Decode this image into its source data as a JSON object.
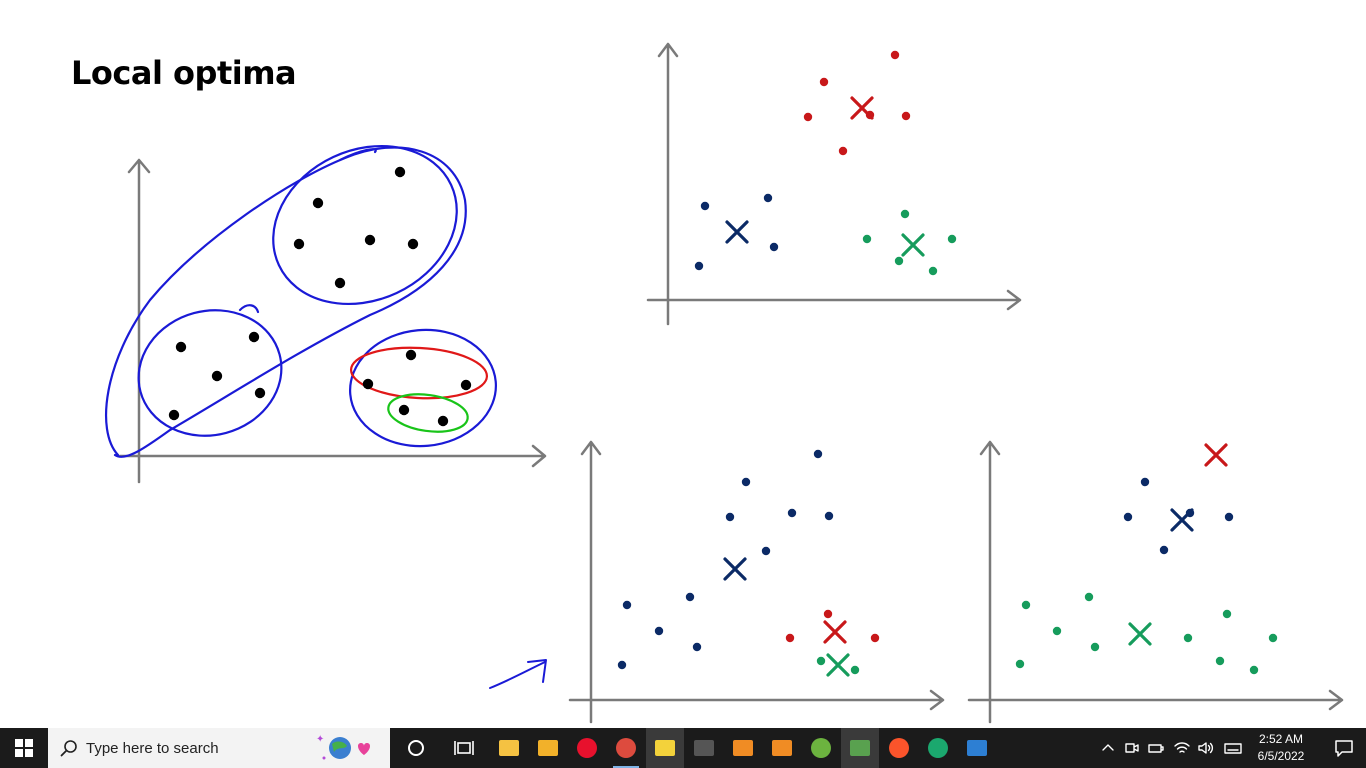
{
  "slide": {
    "title": "Local optima",
    "colors": {
      "axis": "#7a7a7a",
      "ink_blue": "#1a1ad6",
      "ink_red": "#e01818",
      "ink_green": "#19c419",
      "cluster_red": "#c8181a",
      "cluster_navy": "#0b2a66",
      "cluster_green": "#169c5c",
      "point_black": "#000000"
    },
    "plots": [
      {
        "id": "left-handdrawn",
        "points": [
          [
            400,
            172
          ],
          [
            318,
            203
          ],
          [
            299,
            244
          ],
          [
            370,
            240
          ],
          [
            413,
            244
          ],
          [
            340,
            283
          ],
          [
            181,
            347
          ],
          [
            254,
            337
          ],
          [
            217,
            376
          ],
          [
            260,
            393
          ],
          [
            174,
            415
          ],
          [
            411,
            355
          ],
          [
            368,
            384
          ],
          [
            466,
            385
          ],
          [
            404,
            410
          ],
          [
            443,
            421
          ]
        ]
      },
      {
        "id": "top-right",
        "clusters": [
          {
            "color": "cluster_red",
            "centroid": [
              862,
              108
            ],
            "points": [
              [
                895,
                55
              ],
              [
                824,
                82
              ],
              [
                808,
                117
              ],
              [
                906,
                116
              ],
              [
                843,
                151
              ],
              [
                870,
                115
              ]
            ]
          },
          {
            "color": "cluster_navy",
            "centroid": [
              737,
              232
            ],
            "points": [
              [
                705,
                206
              ],
              [
                768,
                198
              ],
              [
                774,
                247
              ],
              [
                699,
                266
              ]
            ]
          },
          {
            "color": "cluster_green",
            "centroid": [
              913,
              245
            ],
            "points": [
              [
                905,
                214
              ],
              [
                867,
                239
              ],
              [
                952,
                239
              ],
              [
                899,
                261
              ],
              [
                933,
                271
              ]
            ]
          }
        ]
      },
      {
        "id": "bottom-middle",
        "clusters": [
          {
            "color": "cluster_navy",
            "centroid": [
              735,
              569
            ],
            "points": [
              [
                818,
                454
              ],
              [
                746,
                482
              ],
              [
                730,
                517
              ],
              [
                792,
                513
              ],
              [
                829,
                516
              ],
              [
                766,
                551
              ],
              [
                627,
                605
              ],
              [
                690,
                597
              ],
              [
                659,
                631
              ],
              [
                697,
                647
              ],
              [
                622,
                665
              ]
            ]
          },
          {
            "color": "cluster_red",
            "centroid": [
              835,
              632
            ],
            "points": [
              [
                828,
                614
              ],
              [
                790,
                638
              ],
              [
                875,
                638
              ]
            ]
          },
          {
            "color": "cluster_green",
            "centroid": [
              838,
              665
            ],
            "points": [
              [
                821,
                661
              ],
              [
                855,
                670
              ]
            ]
          }
        ]
      },
      {
        "id": "bottom-right",
        "clusters": [
          {
            "color": "cluster_red",
            "centroid": [
              1216,
              455
            ],
            "points": []
          },
          {
            "color": "cluster_navy",
            "centroid": [
              1182,
              520
            ],
            "points": [
              [
                1145,
                482
              ],
              [
                1128,
                517
              ],
              [
                1190,
                513
              ],
              [
                1229,
                517
              ],
              [
                1164,
                550
              ]
            ]
          },
          {
            "color": "cluster_green",
            "centroid": [
              1140,
              634
            ],
            "points": [
              [
                1026,
                605
              ],
              [
                1089,
                597
              ],
              [
                1057,
                631
              ],
              [
                1095,
                647
              ],
              [
                1020,
                664
              ],
              [
                1188,
                638
              ],
              [
                1227,
                614
              ],
              [
                1273,
                638
              ],
              [
                1220,
                661
              ],
              [
                1254,
                670
              ]
            ]
          }
        ]
      }
    ]
  },
  "taskbar": {
    "search_placeholder": "Type here to search",
    "icons": {
      "start": "windows-logo-icon",
      "search": "magnifier-icon",
      "cortana": "cortana-circle-icon",
      "task_view": "task-view-icon"
    },
    "apps": [
      {
        "name": "file-explorer-icon",
        "color": "#f5c242"
      },
      {
        "name": "file-folder-icon",
        "color": "#f2b12a"
      },
      {
        "name": "opera-browser-icon",
        "color": "#e8112d"
      },
      {
        "name": "chrome-browser-icon",
        "color": "#dd4b3e"
      },
      {
        "name": "sticky-app-icon",
        "color": "#f3d23b"
      },
      {
        "name": "terminal-icon",
        "color": "#555555"
      },
      {
        "name": "blender-icon",
        "color": "#f08c24"
      },
      {
        "name": "blender-icon-2",
        "color": "#f08c24"
      },
      {
        "name": "utorrent-icon",
        "color": "#6cb33f"
      },
      {
        "name": "download-manager-icon",
        "color": "#59a14f"
      },
      {
        "name": "brave-browser-icon",
        "color": "#fb542b"
      },
      {
        "name": "upwork-icon",
        "color": "#1ba86e"
      },
      {
        "name": "photos-icon",
        "color": "#2d7fd3"
      }
    ],
    "tray": {
      "icons": [
        "chevron-up-icon",
        "meet-now-icon",
        "battery-icon",
        "wifi-icon",
        "volume-icon",
        "keyboard-icon"
      ],
      "time": "2:52 AM",
      "date": "6/5/2022",
      "notification_icon": "notification-icon"
    }
  }
}
